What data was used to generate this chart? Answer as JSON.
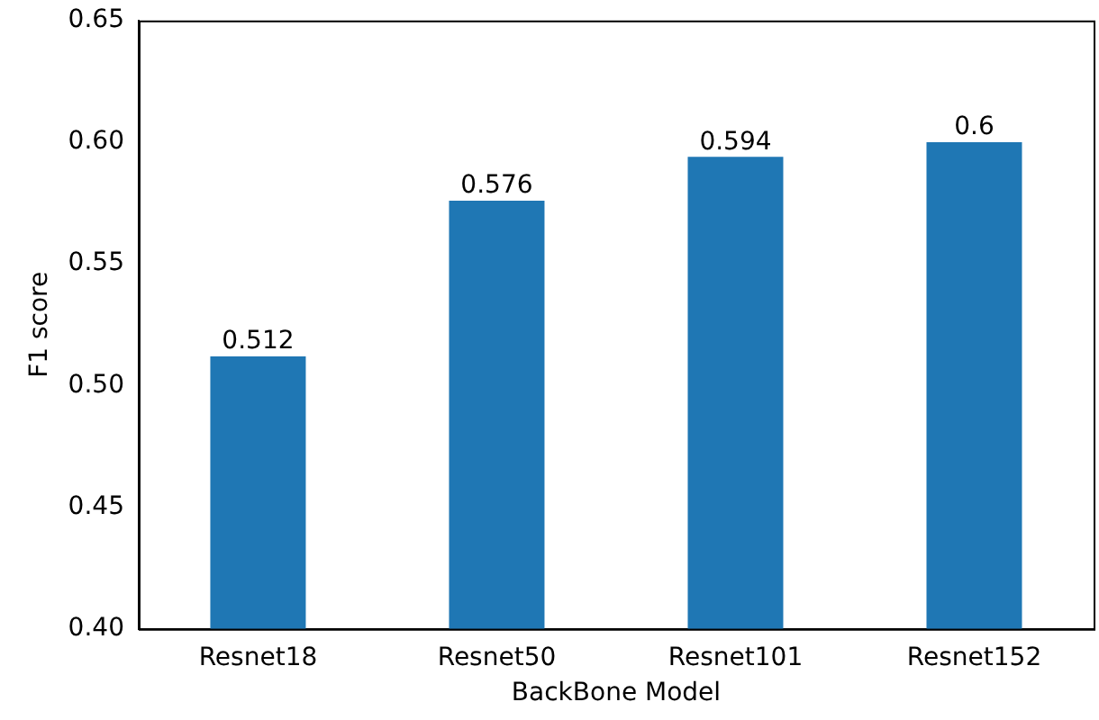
{
  "chart_data": {
    "type": "bar",
    "xlabel": "BackBone Model",
    "ylabel": "F1 score",
    "categories": [
      "Resnet18",
      "Resnet50",
      "Resnet101",
      "Resnet152"
    ],
    "values": [
      0.512,
      0.576,
      0.594,
      0.6
    ],
    "color": "#1f77b4",
    "ylim": [
      0.4,
      0.65
    ],
    "yticks": [
      {
        "value": 0.4,
        "label": "0.40"
      },
      {
        "value": 0.45,
        "label": "0.45"
      },
      {
        "value": 0.5,
        "label": "0.50"
      },
      {
        "value": 0.55,
        "label": "0.55"
      },
      {
        "value": 0.6,
        "label": "0.60"
      },
      {
        "value": 0.65,
        "label": "0.65"
      }
    ],
    "data_labels": true,
    "grid": false,
    "legend": false
  }
}
